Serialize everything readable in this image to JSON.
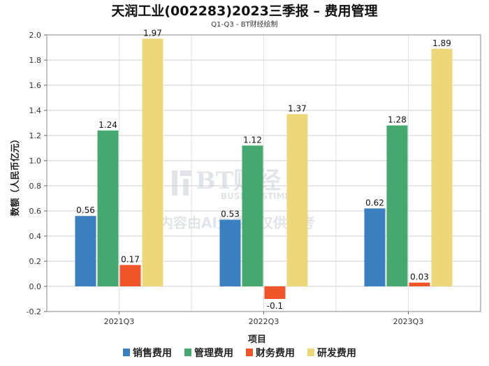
{
  "chart_data": {
    "type": "bar",
    "title": "天润工业(002283)2023三季报 – 费用管理",
    "subtitle": "Q1-Q3 - BT财经绘制",
    "xlabel": "项目",
    "ylabel": "数额（人民币亿元）",
    "categories": [
      "2021Q3",
      "2022Q3",
      "2023Q3"
    ],
    "ylim": [
      -0.2,
      2.0
    ],
    "yticks": [
      "-0.2",
      "0.0",
      "0.2",
      "0.4",
      "0.6",
      "0.8",
      "1.0",
      "1.2",
      "1.4",
      "1.6",
      "1.8",
      "2.0"
    ],
    "grid": true,
    "legend_position": "bottom",
    "series": [
      {
        "name": "销售费用",
        "color": "#3a7fbf",
        "values": [
          0.56,
          0.53,
          0.62
        ],
        "labels": [
          "0.56",
          "0.53",
          "0.62"
        ]
      },
      {
        "name": "管理费用",
        "color": "#44a86f",
        "values": [
          1.24,
          1.12,
          1.28
        ],
        "labels": [
          "1.24",
          "1.12",
          "1.28"
        ]
      },
      {
        "name": "财务费用",
        "color": "#f0552a",
        "values": [
          0.17,
          -0.1,
          0.03
        ],
        "labels": [
          "0.17",
          "-0.1",
          "0.03"
        ]
      },
      {
        "name": "研发费用",
        "color": "#ecd878",
        "values": [
          1.97,
          1.37,
          1.89
        ],
        "labels": [
          "1.97",
          "1.37",
          "1.89"
        ]
      }
    ]
  },
  "watermark": {
    "brand": "BT财经",
    "brand_sub": "BUSINESSTIMES",
    "notice": "内容由AI生成，仅供参考"
  }
}
